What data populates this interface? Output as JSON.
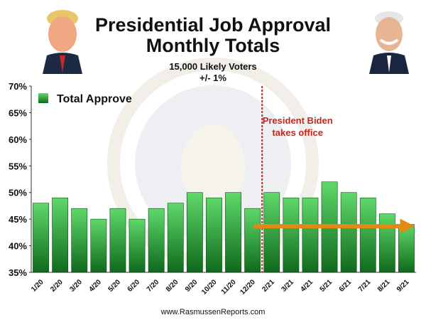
{
  "header": {
    "title_line1": "Presidential Job Approval",
    "title_line2": "Monthly Totals",
    "subtitle_line1": "15,000 Likely Voters",
    "subtitle_line2": "+/- 1%"
  },
  "footer": {
    "source": "www.RasmussenReports.com"
  },
  "colors": {
    "bar_top": "#5fd86a",
    "bar_bottom": "#0f6a1c",
    "divider": "#c0281e",
    "arrow": "#e08a14",
    "annotation_text": "#c0281e"
  },
  "chart_data": {
    "type": "bar",
    "title": "Presidential Job Approval Monthly Totals",
    "categories": [
      "1/20",
      "2/20",
      "3/20",
      "4/20",
      "5/20",
      "6/20",
      "7/20",
      "8/20",
      "9/20",
      "10/20",
      "11/20",
      "12/20",
      "2/21",
      "3/21",
      "4/21",
      "5/21",
      "6/21",
      "7/21",
      "8/21",
      "9/21"
    ],
    "series": [
      {
        "name": "Total Approve",
        "values": [
          48,
          49,
          47,
          45,
          47,
          45,
          47,
          48,
          50,
          49,
          50,
          47,
          50,
          49,
          49,
          52,
          50,
          49,
          46,
          44
        ]
      }
    ],
    "ylim": [
      35,
      70
    ],
    "yticks": [
      35,
      40,
      45,
      50,
      55,
      60,
      65,
      70
    ],
    "ytick_labels": [
      "35%",
      "40%",
      "45%",
      "50%",
      "55%",
      "60%",
      "65%",
      "70%"
    ],
    "xlabel": "",
    "ylabel": "",
    "legend_position": "top-left",
    "grid": false,
    "annotation": {
      "line1": "President Biden",
      "line2": "takes office",
      "after_category": "12/20"
    }
  }
}
